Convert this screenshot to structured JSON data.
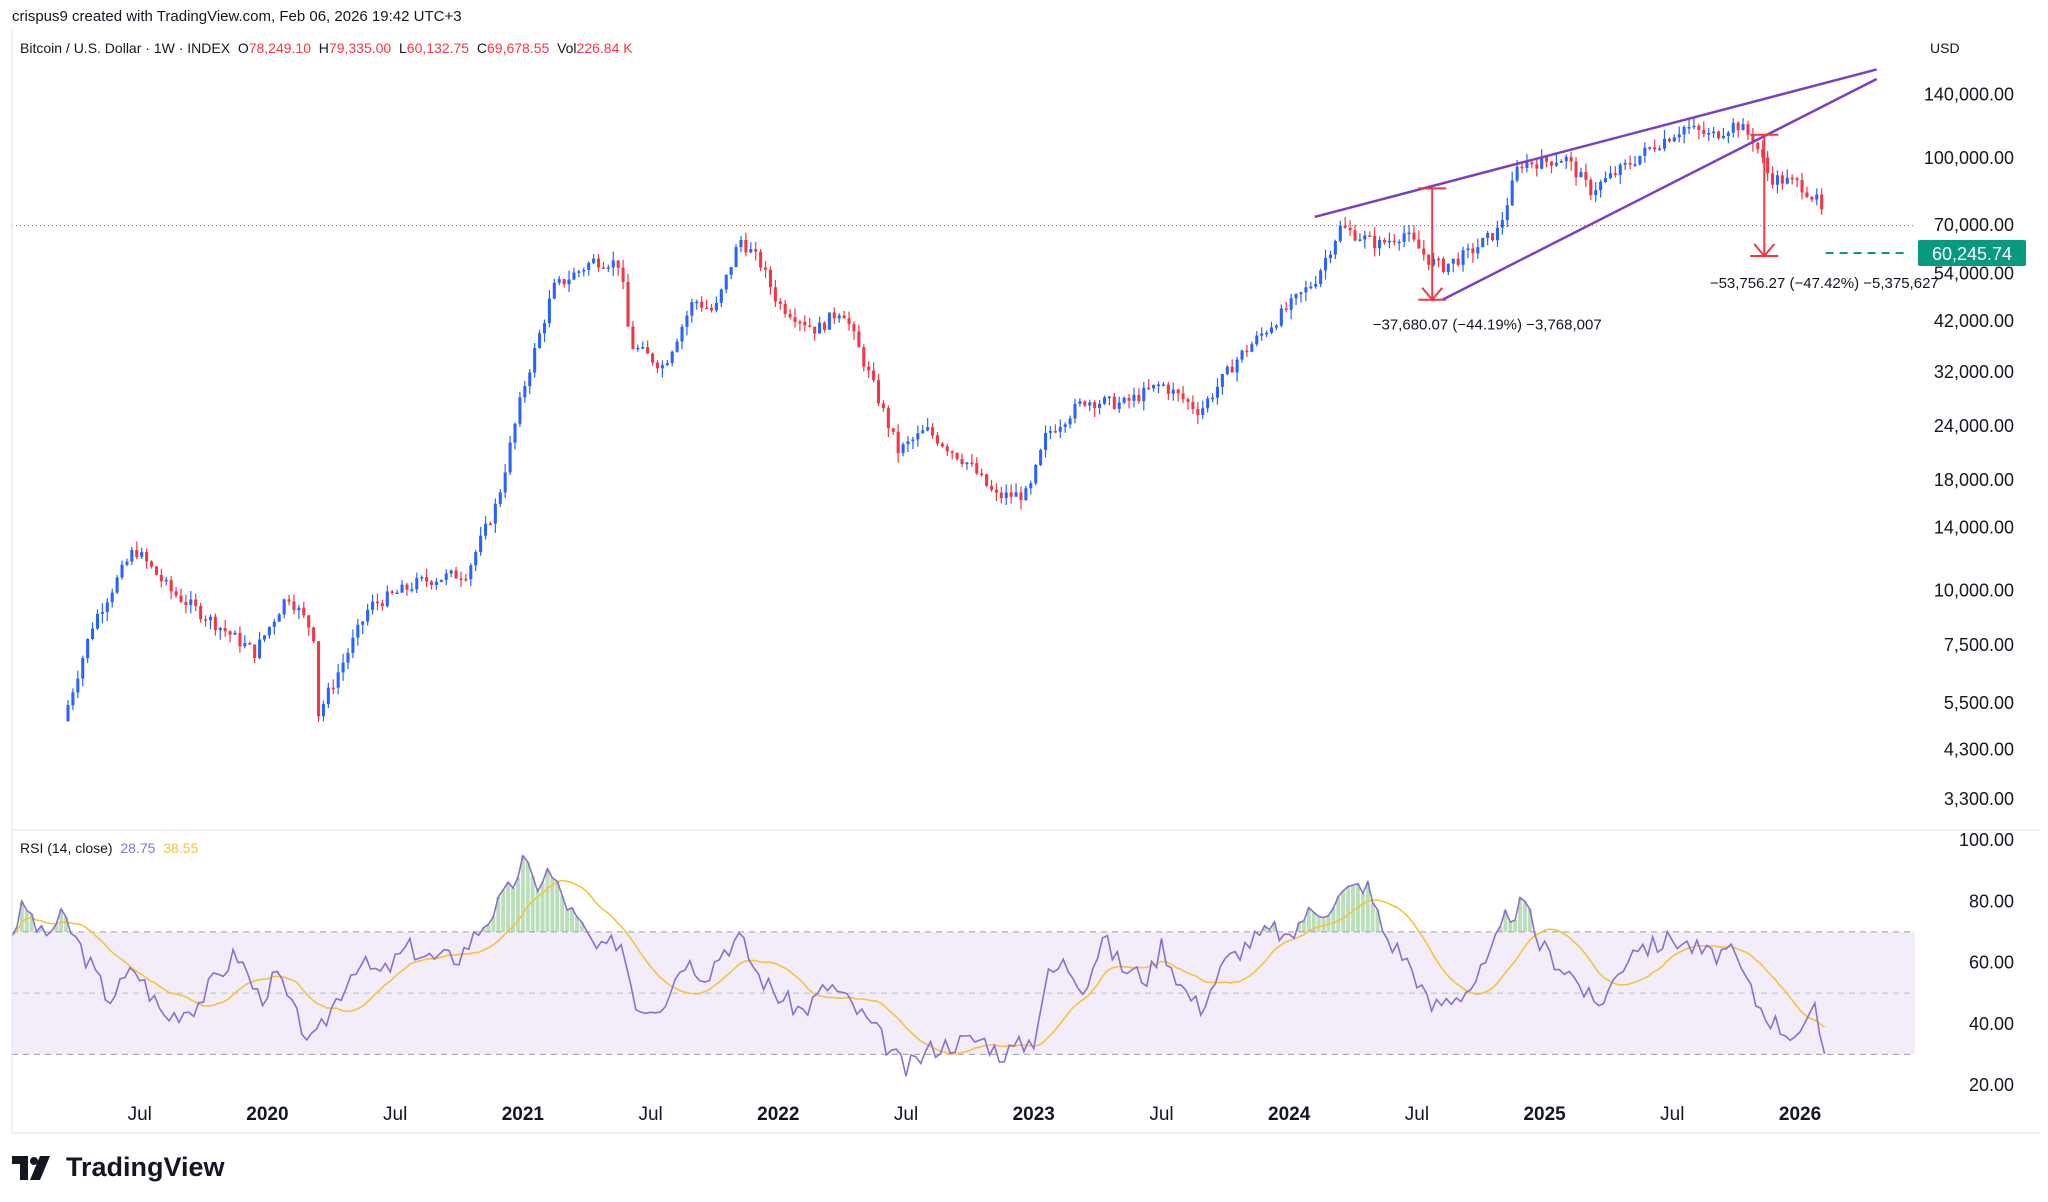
{
  "header": {
    "text": "crispus9 created with TradingView.com, Feb 06, 2026 19:42 UTC+3"
  },
  "legend": {
    "symbol": "Bitcoin / U.S. Dollar · 1W · INDEX",
    "o_label": "O",
    "o": "78,249.10",
    "h_label": "H",
    "h": "79,335.00",
    "l_label": "L",
    "l": "60,132.75",
    "c_label": "C",
    "c": "69,678.55",
    "vol_label": "Vol",
    "vol": "226.84 K"
  },
  "currency": "USD",
  "rsi_legend": {
    "label": "RSI (14, close)",
    "rsi": "28.75",
    "ma": "38.55"
  },
  "brand": {
    "name": "TradingView"
  },
  "colors": {
    "up": "#2962ff",
    "down": "#f23645",
    "channel": "#7b3fc4",
    "measure": "#f23645",
    "rsi": "#8b6fd0",
    "rsi_ma": "#f5c242",
    "price_tag": "#089981"
  },
  "chart_data": [
    {
      "type": "candlestick",
      "scale": "log",
      "timeframe": "1W",
      "ylim": [
        2800,
        170000
      ],
      "y_ticks": [
        {
          "label": "140,000.00",
          "value": 140000
        },
        {
          "label": "100,000.00",
          "value": 100000
        },
        {
          "label": "70,000.00",
          "value": 70000
        },
        {
          "label": "54,000.00",
          "value": 54000
        },
        {
          "label": "42,000.00",
          "value": 42000
        },
        {
          "label": "32,000.00",
          "value": 32000
        },
        {
          "label": "24,000.00",
          "value": 24000
        },
        {
          "label": "18,000.00",
          "value": 18000
        },
        {
          "label": "14,000.00",
          "value": 14000
        },
        {
          "label": "10,000.00",
          "value": 10000
        },
        {
          "label": "7,500.00",
          "value": 7500
        },
        {
          "label": "5,500.00",
          "value": 5500
        },
        {
          "label": "4,300.00",
          "value": 4300
        },
        {
          "label": "3,300.00",
          "value": 3300
        }
      ],
      "x_ticks": [
        {
          "label": "Jul",
          "t": 2019.5,
          "bold": false
        },
        {
          "label": "2020",
          "t": 2020.0,
          "bold": true
        },
        {
          "label": "Jul",
          "t": 2020.5,
          "bold": false
        },
        {
          "label": "2021",
          "t": 2021.0,
          "bold": true
        },
        {
          "label": "Jul",
          "t": 2021.5,
          "bold": false
        },
        {
          "label": "2022",
          "t": 2022.0,
          "bold": true
        },
        {
          "label": "Jul",
          "t": 2022.5,
          "bold": false
        },
        {
          "label": "2023",
          "t": 2023.0,
          "bold": true
        },
        {
          "label": "Jul",
          "t": 2023.5,
          "bold": false
        },
        {
          "label": "2024",
          "t": 2024.0,
          "bold": true
        },
        {
          "label": "Jul",
          "t": 2024.5,
          "bold": false
        },
        {
          "label": "2025",
          "t": 2025.0,
          "bold": true
        },
        {
          "label": "Jul",
          "t": 2025.5,
          "bold": false
        },
        {
          "label": "2026",
          "t": 2026.0,
          "bold": true
        }
      ],
      "price_anchors": [
        [
          2019.2,
          5000
        ],
        [
          2019.32,
          8500
        ],
        [
          2019.48,
          12500
        ],
        [
          2019.62,
          10000
        ],
        [
          2019.82,
          8200
        ],
        [
          2019.95,
          7200
        ],
        [
          2020.08,
          9800
        ],
        [
          2020.18,
          8000
        ],
        [
          2020.2,
          5200
        ],
        [
          2020.4,
          9200
        ],
        [
          2020.6,
          10500
        ],
        [
          2020.78,
          11000
        ],
        [
          2020.9,
          16000
        ],
        [
          2021.0,
          29000
        ],
        [
          2021.12,
          50000
        ],
        [
          2021.28,
          58000
        ],
        [
          2021.38,
          57000
        ],
        [
          2021.42,
          37000
        ],
        [
          2021.55,
          33000
        ],
        [
          2021.67,
          47000
        ],
        [
          2021.75,
          44000
        ],
        [
          2021.85,
          65000
        ],
        [
          2021.93,
          57000
        ],
        [
          2022.0,
          46000
        ],
        [
          2022.15,
          40000
        ],
        [
          2022.25,
          45000
        ],
        [
          2022.37,
          30000
        ],
        [
          2022.47,
          21000
        ],
        [
          2022.58,
          23500
        ],
        [
          2022.75,
          19500
        ],
        [
          2022.85,
          16500
        ],
        [
          2022.98,
          16700
        ],
        [
          2023.05,
          23000
        ],
        [
          2023.2,
          27500
        ],
        [
          2023.35,
          27000
        ],
        [
          2023.5,
          30000
        ],
        [
          2023.65,
          26000
        ],
        [
          2023.8,
          34500
        ],
        [
          2023.97,
          43500
        ],
        [
          2024.1,
          52000
        ],
        [
          2024.2,
          69000
        ],
        [
          2024.35,
          63000
        ],
        [
          2024.45,
          67000
        ],
        [
          2024.55,
          58000
        ],
        [
          2024.6,
          56000
        ],
        [
          2024.7,
          60000
        ],
        [
          2024.82,
          68000
        ],
        [
          2024.9,
          97000
        ],
        [
          2025.0,
          98000
        ],
        [
          2025.08,
          100000
        ],
        [
          2025.18,
          84000
        ],
        [
          2025.3,
          94000
        ],
        [
          2025.42,
          106000
        ],
        [
          2025.55,
          118000
        ],
        [
          2025.65,
          112000
        ],
        [
          2025.75,
          120000
        ],
        [
          2025.82,
          110000
        ],
        [
          2025.88,
          90000
        ],
        [
          2026.0,
          87000
        ],
        [
          2026.08,
          78000
        ],
        [
          2026.1,
          69678.55
        ]
      ],
      "current_price": {
        "label": "60,245.74",
        "value": 60245.74
      },
      "last_price_line": 69678.55,
      "channel_upper": [
        [
          2024.1,
          73000
        ],
        [
          2026.3,
          160000
        ]
      ],
      "channel_lower": [
        [
          2024.6,
          47000
        ],
        [
          2026.3,
          152000
        ]
      ],
      "measurements": [
        {
          "label": "−37,680.07 (−44.19%) −3,768,007",
          "from_t": 2024.56,
          "from_value": 85000,
          "to_value": 47000
        },
        {
          "label": "−53,756.27 (−47.42%) −5,375,627",
          "from_t": 2025.86,
          "from_value": 113000,
          "to_value": 59300
        }
      ]
    },
    {
      "type": "line",
      "name": "RSI (14, close)",
      "ylim": [
        20,
        100
      ],
      "y_ticks": [
        {
          "label": "100.00",
          "value": 100
        },
        {
          "label": "80.00",
          "value": 80
        },
        {
          "label": "60.00",
          "value": 60
        },
        {
          "label": "40.00",
          "value": 40
        },
        {
          "label": "20.00",
          "value": 20
        }
      ],
      "band": [
        30,
        70
      ],
      "midline": 50,
      "rsi_anchors": [
        [
          2019.0,
          70
        ],
        [
          2019.05,
          79
        ],
        [
          2019.12,
          68
        ],
        [
          2019.2,
          75
        ],
        [
          2019.3,
          60
        ],
        [
          2019.38,
          48
        ],
        [
          2019.48,
          58
        ],
        [
          2019.6,
          42
        ],
        [
          2019.72,
          46
        ],
        [
          2019.8,
          55
        ],
        [
          2019.88,
          63
        ],
        [
          2019.97,
          48
        ],
        [
          2020.04,
          56
        ],
        [
          2020.1,
          44
        ],
        [
          2020.18,
          33
        ],
        [
          2020.25,
          45
        ],
        [
          2020.35,
          60
        ],
        [
          2020.45,
          56
        ],
        [
          2020.55,
          65
        ],
        [
          2020.65,
          61
        ],
        [
          2020.75,
          62
        ],
        [
          2020.85,
          73
        ],
        [
          2020.95,
          84
        ],
        [
          2021.0,
          93
        ],
        [
          2021.05,
          85
        ],
        [
          2021.1,
          90
        ],
        [
          2021.2,
          75
        ],
        [
          2021.3,
          63
        ],
        [
          2021.38,
          68
        ],
        [
          2021.45,
          45
        ],
        [
          2021.55,
          47
        ],
        [
          2021.63,
          61
        ],
        [
          2021.72,
          56
        ],
        [
          2021.78,
          64
        ],
        [
          2021.85,
          68
        ],
        [
          2021.92,
          56
        ],
        [
          2022.0,
          49
        ],
        [
          2022.1,
          44
        ],
        [
          2022.2,
          53
        ],
        [
          2022.3,
          45
        ],
        [
          2022.38,
          38
        ],
        [
          2022.45,
          30
        ],
        [
          2022.5,
          25
        ],
        [
          2022.6,
          32
        ],
        [
          2022.7,
          34
        ],
        [
          2022.8,
          35
        ],
        [
          2022.87,
          30
        ],
        [
          2022.95,
          33
        ],
        [
          2023.0,
          35
        ],
        [
          2023.05,
          55
        ],
        [
          2023.12,
          60
        ],
        [
          2023.2,
          52
        ],
        [
          2023.27,
          68
        ],
        [
          2023.35,
          58
        ],
        [
          2023.45,
          55
        ],
        [
          2023.5,
          66
        ],
        [
          2023.58,
          52
        ],
        [
          2023.65,
          45
        ],
        [
          2023.75,
          60
        ],
        [
          2023.85,
          67
        ],
        [
          2023.95,
          71
        ],
        [
          2024.0,
          66
        ],
        [
          2024.05,
          75
        ],
        [
          2024.15,
          78
        ],
        [
          2024.22,
          83
        ],
        [
          2024.3,
          86
        ],
        [
          2024.38,
          68
        ],
        [
          2024.45,
          62
        ],
        [
          2024.5,
          55
        ],
        [
          2024.55,
          45
        ],
        [
          2024.62,
          48
        ],
        [
          2024.7,
          51
        ],
        [
          2024.78,
          60
        ],
        [
          2024.85,
          75
        ],
        [
          2024.92,
          79
        ],
        [
          2024.98,
          66
        ],
        [
          2025.05,
          60
        ],
        [
          2025.12,
          55
        ],
        [
          2025.2,
          45
        ],
        [
          2025.28,
          55
        ],
        [
          2025.35,
          66
        ],
        [
          2025.42,
          65
        ],
        [
          2025.5,
          68
        ],
        [
          2025.58,
          65
        ],
        [
          2025.65,
          62
        ],
        [
          2025.72,
          64
        ],
        [
          2025.78,
          56
        ],
        [
          2025.82,
          48
        ],
        [
          2025.88,
          42
        ],
        [
          2025.95,
          37
        ],
        [
          2026.02,
          38
        ],
        [
          2026.06,
          44
        ],
        [
          2026.1,
          28.75
        ]
      ]
    }
  ]
}
